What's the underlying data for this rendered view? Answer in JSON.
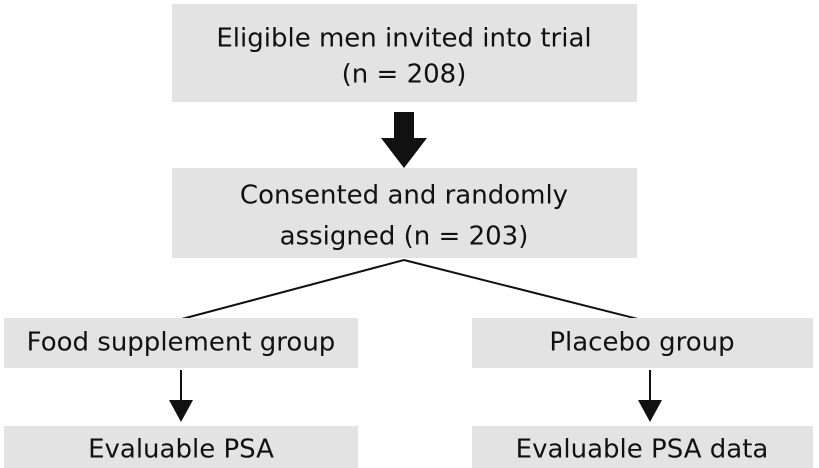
{
  "nodes": [
    {
      "label": "Eligible men invited into trial",
      "sublabel": "(n = 208)"
    },
    {
      "label": "Consented and randomly",
      "sublabel": "assigned (n = 203)"
    },
    {
      "label": "Food supplement group"
    },
    {
      "label": "Placebo group"
    },
    {
      "label": "Evaluable PSA"
    },
    {
      "label": "Evaluable PSA data"
    }
  ]
}
